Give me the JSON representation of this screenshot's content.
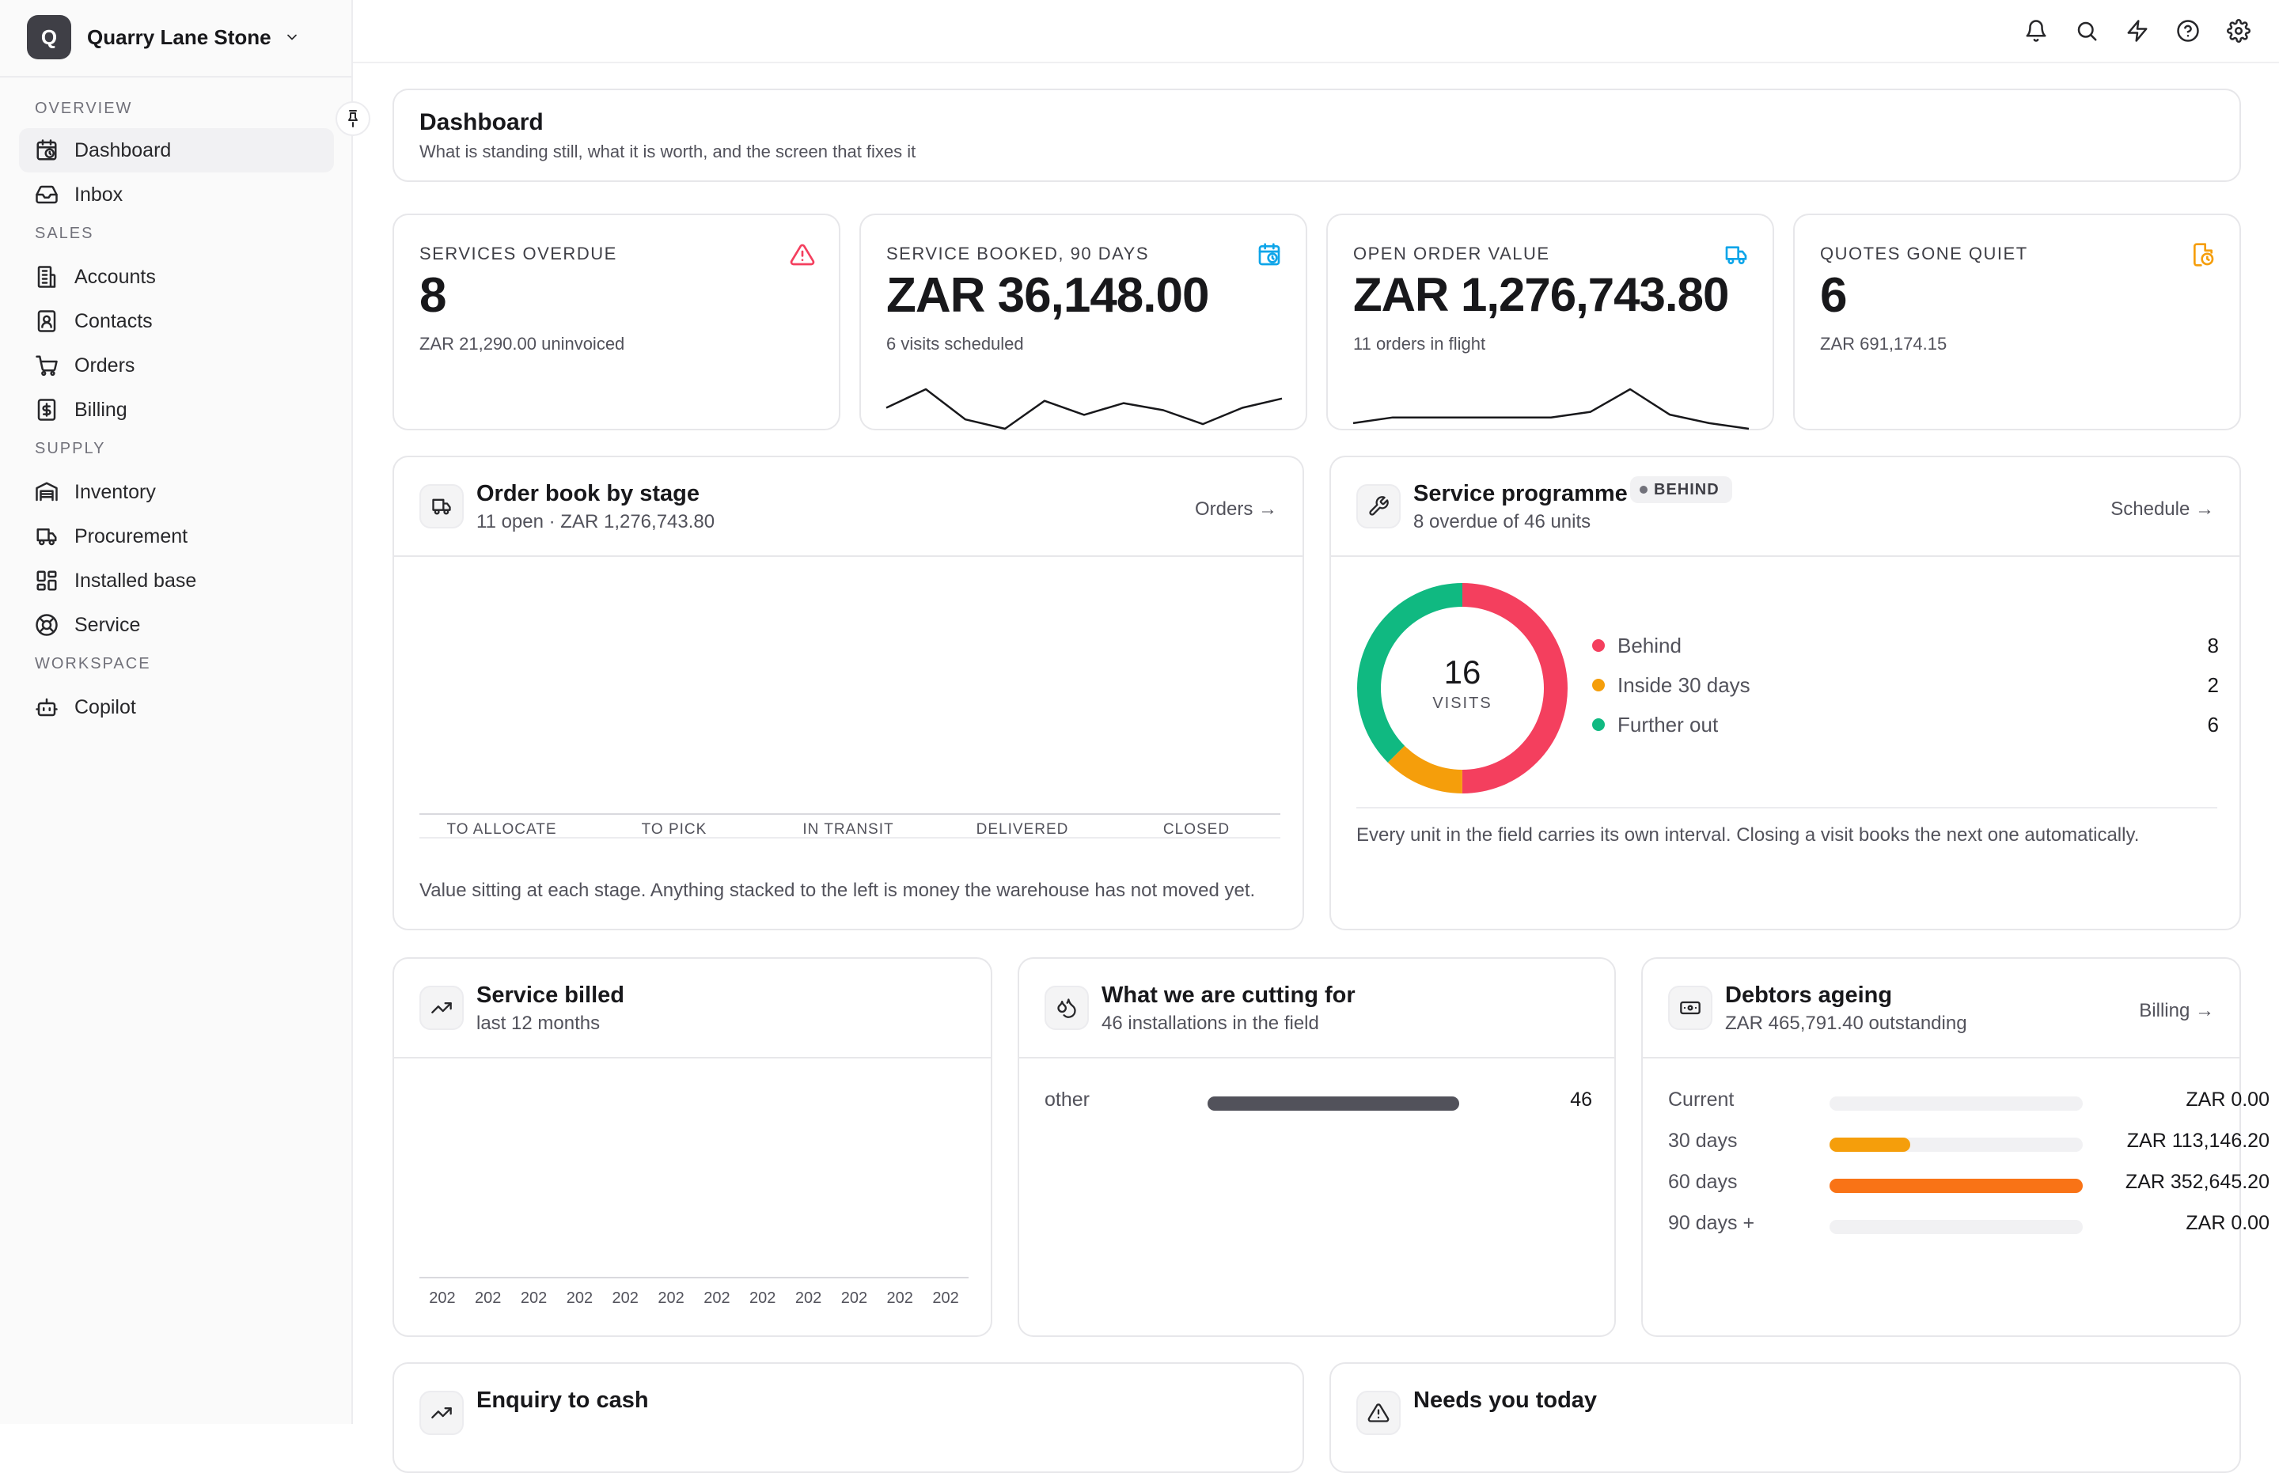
{
  "org": {
    "initial": "Q",
    "name": "Quarry Lane Stone"
  },
  "nav": {
    "sections": [
      {
        "label": "OVERVIEW"
      },
      {
        "label": "SALES"
      },
      {
        "label": "SUPPLY"
      },
      {
        "label": "WORKSPACE"
      }
    ],
    "items": [
      {
        "label": "Dashboard",
        "icon": "calendar-clock-icon",
        "active": true
      },
      {
        "label": "Inbox",
        "icon": "inbox-icon"
      },
      {
        "label": "Accounts",
        "icon": "building-icon"
      },
      {
        "label": "Contacts",
        "icon": "contact-icon"
      },
      {
        "label": "Orders",
        "icon": "cart-icon"
      },
      {
        "label": "Billing",
        "icon": "dollar-file-icon"
      },
      {
        "label": "Inventory",
        "icon": "warehouse-icon"
      },
      {
        "label": "Procurement",
        "icon": "truck-icon"
      },
      {
        "label": "Installed base",
        "icon": "grid-icon"
      },
      {
        "label": "Service",
        "icon": "lifebuoy-icon"
      },
      {
        "label": "Copilot",
        "icon": "bot-icon"
      }
    ]
  },
  "topbar": {
    "icons": [
      "bell-icon",
      "search-icon",
      "zap-icon",
      "help-icon",
      "settings-icon"
    ]
  },
  "header": {
    "title": "Dashboard",
    "subtitle": "What is standing still, what it is worth, and the screen that fixes it"
  },
  "kpis": [
    {
      "label": "SERVICES OVERDUE",
      "value": "8",
      "sub": "ZAR 21,290.00 uninvoiced",
      "icon": "alert-triangle-icon",
      "color": "#f43f5e"
    },
    {
      "label": "SERVICE BOOKED, 90 DAYS",
      "value": "ZAR 36,148.00",
      "sub": "6 visits scheduled",
      "icon": "calendar-clock-icon",
      "color": "#0ea5e9",
      "spark": [
        50,
        42,
        55,
        59,
        47,
        53,
        48,
        51,
        57,
        50,
        46
      ]
    },
    {
      "label": "OPEN ORDER VALUE",
      "value": "ZAR 1,276,743.80",
      "sub": "11 orders in flight",
      "icon": "truck-icon",
      "color": "#0ea5e9",
      "spark": [
        50,
        48,
        48,
        48,
        48,
        48,
        46,
        38,
        47,
        50,
        52
      ]
    },
    {
      "label": "QUOTES GONE QUIET",
      "value": "6",
      "sub": "ZAR 691,174.15",
      "icon": "file-clock-icon",
      "color": "#f59e0b"
    }
  ],
  "orderbook": {
    "title": "Order book by stage",
    "subtitle": "11 open · ZAR 1,276,743.80",
    "link": "Orders →",
    "icon": "truck-icon",
    "stages": [
      "TO ALLOCATE",
      "TO PICK",
      "IN TRANSIT",
      "DELIVERED",
      "CLOSED"
    ],
    "note": "Value sitting at each stage. Anything stacked to the left is money the warehouse has not moved yet."
  },
  "programme": {
    "title": "Service programme",
    "badge": "BEHIND",
    "subtitle": "8 overdue of 46 units",
    "link": "Schedule →",
    "icon": "wrench-icon",
    "total": "16",
    "total_label": "VISITS",
    "segments": [
      {
        "name": "Behind",
        "value": 8,
        "color": "#f43f5e"
      },
      {
        "name": "Inside 30 days",
        "value": 2,
        "color": "#f59e0b"
      },
      {
        "name": "Further out",
        "value": 6,
        "color": "#10b981"
      }
    ],
    "note": "Every unit in the field carries its own interval. Closing a visit books the next one automatically."
  },
  "billed": {
    "title": "Service billed",
    "subtitle": "last 12 months",
    "icon": "trending-up-icon",
    "xlabels": [
      "202",
      "202",
      "202",
      "202",
      "202",
      "202",
      "202",
      "202",
      "202",
      "202",
      "202",
      "202"
    ]
  },
  "cutting": {
    "title": "What we are cutting for",
    "subtitle": "46 installations in the field",
    "icon": "droplets-icon",
    "rows": [
      {
        "label": "other",
        "value": "46",
        "fraction": 1.0,
        "color": "#52525b"
      }
    ]
  },
  "debtors": {
    "title": "Debtors ageing",
    "subtitle": "ZAR 465,791.40 outstanding",
    "link": "Billing →",
    "icon": "banknote-icon",
    "rows": [
      {
        "label": "Current",
        "value": "ZAR 0.00",
        "fraction": 0,
        "color": "#f59e0b"
      },
      {
        "label": "30 days",
        "value": "ZAR 113,146.20",
        "fraction": 0.32,
        "color": "#f59e0b"
      },
      {
        "label": "60 days",
        "value": "ZAR 352,645.20",
        "fraction": 1.0,
        "color": "#f97316"
      },
      {
        "label": "90 days +",
        "value": "ZAR 0.00",
        "fraction": 0,
        "color": "#ef4444"
      }
    ]
  },
  "enquiry": {
    "title": "Enquiry to cash",
    "icon": "trending-up-icon"
  },
  "needs": {
    "title": "Needs you today",
    "icon": "alert-triangle-icon"
  }
}
